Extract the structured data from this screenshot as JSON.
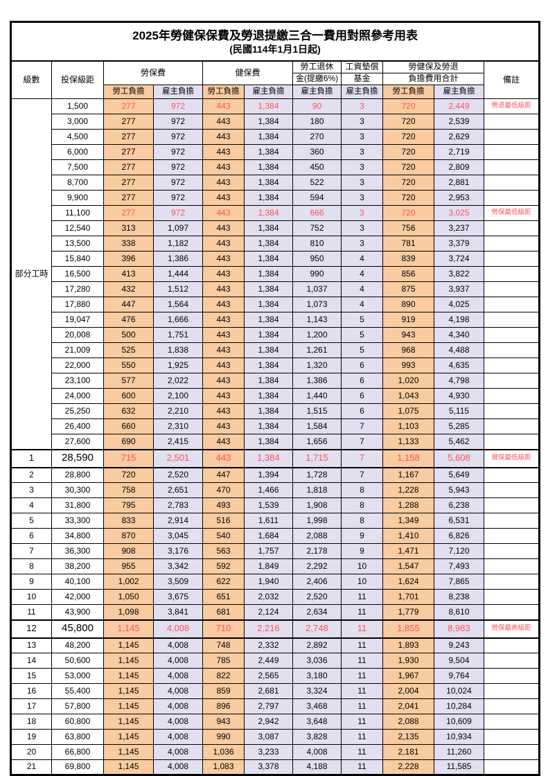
{
  "title": "2025年勞健保保費及勞退提繳三合一費用對照參考用表",
  "subtitle": "(民國114年1月1日起)",
  "colors": {
    "employee_column_bg": "#F8CBA0",
    "employer_column_bg": "#E2DFF0",
    "highlight_text": "#FF5252",
    "border": "#000000"
  },
  "header": {
    "level": "級數",
    "bracket": "投保級距",
    "labor": "勞保費",
    "health": "健保費",
    "pension_line1": "勞工退休",
    "pension_line2": "金(提繳6%)",
    "wage_fund_line1": "工資墊償",
    "wage_fund_line2": "基金",
    "total_line1": "勞健保及勞退",
    "total_line2": "負擔費用合計",
    "employee": "勞工負擔",
    "employer": "雇主負擔",
    "note": "備註"
  },
  "part_time_label": "部分工時",
  "part_time_rowspan": 23,
  "row_fields": [
    "level",
    "bracket",
    "labor_employee",
    "labor_employer",
    "health_employee",
    "health_employer",
    "pension_employer",
    "wage_fund_employer",
    "total_employee",
    "total_employer",
    "note",
    "is_red",
    "is_big"
  ],
  "rows": [
    [
      "",
      "1,500",
      "277",
      "972",
      "443",
      "1,384",
      "90",
      "3",
      "720",
      "2,449",
      "勞退最低級距",
      true,
      false
    ],
    [
      "",
      "3,000",
      "277",
      "972",
      "443",
      "1,384",
      "180",
      "3",
      "720",
      "2,539",
      "",
      false,
      false
    ],
    [
      "",
      "4,500",
      "277",
      "972",
      "443",
      "1,384",
      "270",
      "3",
      "720",
      "2,629",
      "",
      false,
      false
    ],
    [
      "",
      "6,000",
      "277",
      "972",
      "443",
      "1,384",
      "360",
      "3",
      "720",
      "2,719",
      "",
      false,
      false
    ],
    [
      "",
      "7,500",
      "277",
      "972",
      "443",
      "1,384",
      "450",
      "3",
      "720",
      "2,809",
      "",
      false,
      false
    ],
    [
      "",
      "8,700",
      "277",
      "972",
      "443",
      "1,384",
      "522",
      "3",
      "720",
      "2,881",
      "",
      false,
      false
    ],
    [
      "",
      "9,900",
      "277",
      "972",
      "443",
      "1,384",
      "594",
      "3",
      "720",
      "2,953",
      "",
      false,
      false
    ],
    [
      "",
      "11,100",
      "277",
      "972",
      "443",
      "1,384",
      "666",
      "3",
      "720",
      "3,025",
      "勞保最低級距",
      true,
      false
    ],
    [
      "",
      "12,540",
      "313",
      "1,097",
      "443",
      "1,384",
      "752",
      "3",
      "756",
      "3,237",
      "",
      false,
      false
    ],
    [
      "",
      "13,500",
      "338",
      "1,182",
      "443",
      "1,384",
      "810",
      "3",
      "781",
      "3,379",
      "",
      false,
      false
    ],
    [
      "",
      "15,840",
      "396",
      "1,386",
      "443",
      "1,384",
      "950",
      "4",
      "839",
      "3,724",
      "",
      false,
      false
    ],
    [
      "",
      "16,500",
      "413",
      "1,444",
      "443",
      "1,384",
      "990",
      "4",
      "856",
      "3,822",
      "",
      false,
      false
    ],
    [
      "",
      "17,280",
      "432",
      "1,512",
      "443",
      "1,384",
      "1,037",
      "4",
      "875",
      "3,937",
      "",
      false,
      false
    ],
    [
      "",
      "17,880",
      "447",
      "1,564",
      "443",
      "1,384",
      "1,073",
      "4",
      "890",
      "4,025",
      "",
      false,
      false
    ],
    [
      "",
      "19,047",
      "476",
      "1,666",
      "443",
      "1,384",
      "1,143",
      "5",
      "919",
      "4,198",
      "",
      false,
      false
    ],
    [
      "",
      "20,008",
      "500",
      "1,751",
      "443",
      "1,384",
      "1,200",
      "5",
      "943",
      "4,340",
      "",
      false,
      false
    ],
    [
      "",
      "21,009",
      "525",
      "1,838",
      "443",
      "1,384",
      "1,261",
      "5",
      "968",
      "4,488",
      "",
      false,
      false
    ],
    [
      "",
      "22,000",
      "550",
      "1,925",
      "443",
      "1,384",
      "1,320",
      "6",
      "993",
      "4,635",
      "",
      false,
      false
    ],
    [
      "",
      "23,100",
      "577",
      "2,022",
      "443",
      "1,384",
      "1,386",
      "6",
      "1,020",
      "4,798",
      "",
      false,
      false
    ],
    [
      "",
      "24,000",
      "600",
      "2,100",
      "443",
      "1,384",
      "1,440",
      "6",
      "1,043",
      "4,930",
      "",
      false,
      false
    ],
    [
      "",
      "25,250",
      "632",
      "2,210",
      "443",
      "1,384",
      "1,515",
      "6",
      "1,075",
      "5,115",
      "",
      false,
      false
    ],
    [
      "",
      "26,400",
      "660",
      "2,310",
      "443",
      "1,384",
      "1,584",
      "7",
      "1,103",
      "5,285",
      "",
      false,
      false
    ],
    [
      "",
      "27,600",
      "690",
      "2,415",
      "443",
      "1,384",
      "1,656",
      "7",
      "1,133",
      "5,462",
      "",
      false,
      false
    ],
    [
      "1",
      "28,590",
      "715",
      "2,501",
      "443",
      "1,384",
      "1,715",
      "7",
      "1,158",
      "5,608",
      "健保最低級距",
      true,
      true
    ],
    [
      "2",
      "28,800",
      "720",
      "2,520",
      "447",
      "1,394",
      "1,728",
      "7",
      "1,167",
      "5,649",
      "",
      false,
      false
    ],
    [
      "3",
      "30,300",
      "758",
      "2,651",
      "470",
      "1,466",
      "1,818",
      "8",
      "1,228",
      "5,943",
      "",
      false,
      false
    ],
    [
      "4",
      "31,800",
      "795",
      "2,783",
      "493",
      "1,539",
      "1,908",
      "8",
      "1,288",
      "6,238",
      "",
      false,
      false
    ],
    [
      "5",
      "33,300",
      "833",
      "2,914",
      "516",
      "1,611",
      "1,998",
      "8",
      "1,349",
      "6,531",
      "",
      false,
      false
    ],
    [
      "6",
      "34,800",
      "870",
      "3,045",
      "540",
      "1,684",
      "2,088",
      "9",
      "1,410",
      "6,826",
      "",
      false,
      false
    ],
    [
      "7",
      "36,300",
      "908",
      "3,176",
      "563",
      "1,757",
      "2,178",
      "9",
      "1,471",
      "7,120",
      "",
      false,
      false
    ],
    [
      "8",
      "38,200",
      "955",
      "3,342",
      "592",
      "1,849",
      "2,292",
      "10",
      "1,547",
      "7,493",
      "",
      false,
      false
    ],
    [
      "9",
      "40,100",
      "1,002",
      "3,509",
      "622",
      "1,940",
      "2,406",
      "10",
      "1,624",
      "7,865",
      "",
      false,
      false
    ],
    [
      "10",
      "42,000",
      "1,050",
      "3,675",
      "651",
      "2,032",
      "2,520",
      "11",
      "1,701",
      "8,238",
      "",
      false,
      false
    ],
    [
      "11",
      "43,900",
      "1,098",
      "3,841",
      "681",
      "2,124",
      "2,634",
      "11",
      "1,779",
      "8,610",
      "",
      false,
      false
    ],
    [
      "12",
      "45,800",
      "1,145",
      "4,008",
      "710",
      "2,216",
      "2,748",
      "11",
      "1,855",
      "8,983",
      "勞保最高級距",
      true,
      true
    ],
    [
      "13",
      "48,200",
      "1,145",
      "4,008",
      "748",
      "2,332",
      "2,892",
      "11",
      "1,893",
      "9,243",
      "",
      false,
      false
    ],
    [
      "14",
      "50,600",
      "1,145",
      "4,008",
      "785",
      "2,449",
      "3,036",
      "11",
      "1,930",
      "9,504",
      "",
      false,
      false
    ],
    [
      "15",
      "53,000",
      "1,145",
      "4,008",
      "822",
      "2,565",
      "3,180",
      "11",
      "1,967",
      "9,764",
      "",
      false,
      false
    ],
    [
      "16",
      "55,400",
      "1,145",
      "4,008",
      "859",
      "2,681",
      "3,324",
      "11",
      "2,004",
      "10,024",
      "",
      false,
      false
    ],
    [
      "17",
      "57,800",
      "1,145",
      "4,008",
      "896",
      "2,797",
      "3,468",
      "11",
      "2,041",
      "10,284",
      "",
      false,
      false
    ],
    [
      "18",
      "60,800",
      "1,145",
      "4,008",
      "943",
      "2,942",
      "3,648",
      "11",
      "2,088",
      "10,609",
      "",
      false,
      false
    ],
    [
      "19",
      "63,800",
      "1,145",
      "4,008",
      "990",
      "3,087",
      "3,828",
      "11",
      "2,135",
      "10,934",
      "",
      false,
      false
    ],
    [
      "20",
      "66,800",
      "1,145",
      "4,008",
      "1,036",
      "3,233",
      "4,008",
      "11",
      "2,181",
      "11,260",
      "",
      false,
      false
    ],
    [
      "21",
      "69,800",
      "1,145",
      "4,008",
      "1,083",
      "3,378",
      "4,188",
      "11",
      "2,228",
      "11,585",
      "",
      false,
      false
    ]
  ]
}
